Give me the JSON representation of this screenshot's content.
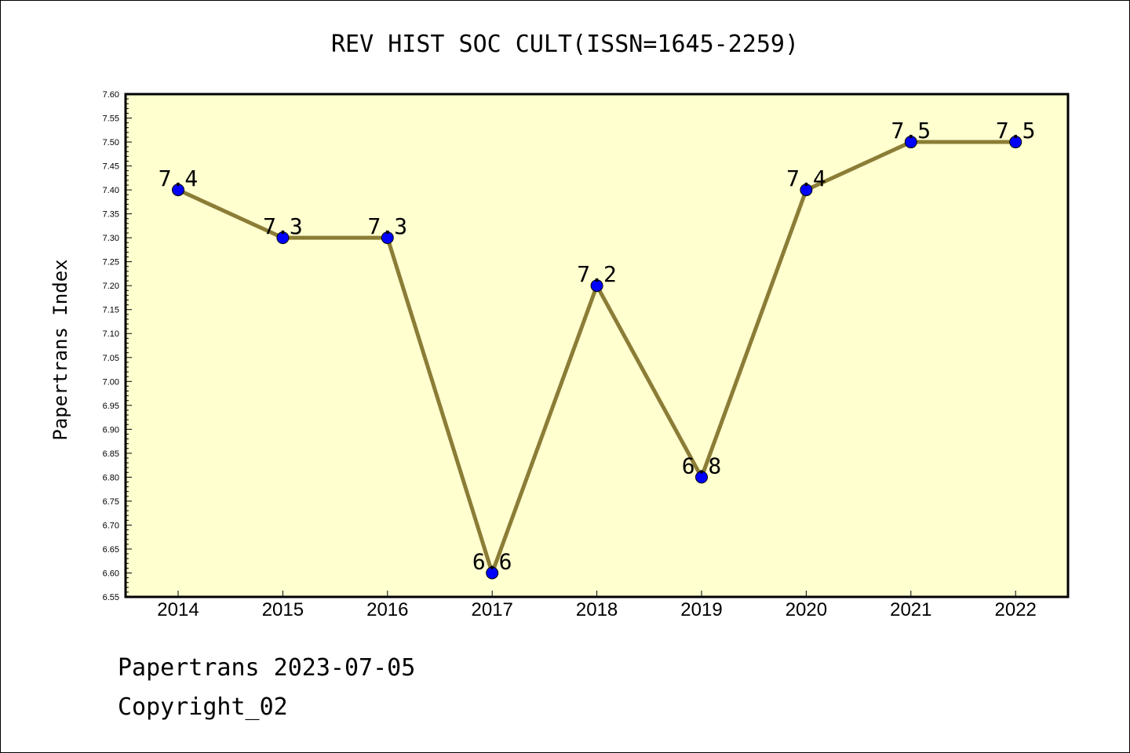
{
  "chart_data": {
    "type": "line",
    "title": "REV HIST SOC CULT(ISSN=1645-2259)",
    "xlabel": "",
    "ylabel": "Papertrans Index",
    "categories": [
      "2014",
      "2015",
      "2016",
      "2017",
      "2018",
      "2019",
      "2020",
      "2021",
      "2022"
    ],
    "series": [
      {
        "values": [
          7.4,
          7.3,
          7.3,
          6.6,
          7.2,
          6.8,
          7.4,
          7.5,
          7.5
        ]
      }
    ],
    "data_labels": [
      "7.4",
      "7.3",
      "7.3",
      "6.6",
      "7.2",
      "6.8",
      "7.4",
      "7.5",
      "7.5"
    ],
    "ylim": [
      6.55,
      7.6
    ],
    "y_ticks": [
      "6.55",
      "6.60",
      "6.65",
      "6.70",
      "6.75",
      "6.80",
      "6.85",
      "6.90",
      "6.95",
      "7.00",
      "7.05",
      "7.10",
      "7.15",
      "7.20",
      "7.25",
      "7.30",
      "7.35",
      "7.40",
      "7.45",
      "7.50",
      "7.55",
      "7.60"
    ],
    "grid": false,
    "legend": "none",
    "colors": {
      "plot_background": "#ffffd0",
      "line": "#8b7d36",
      "marker": "#0000ff"
    }
  },
  "footer": {
    "line1": "Papertrans 2023-07-05",
    "line2": "Copyright_02"
  }
}
